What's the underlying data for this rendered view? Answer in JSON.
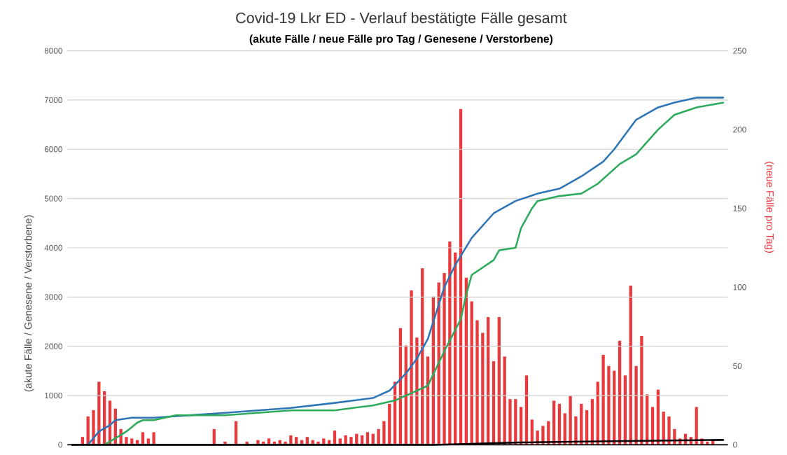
{
  "chart_data": {
    "type": "line",
    "title": "Covid-19 Lkr ED - Verlauf bestätigte Fälle gesamt",
    "subtitle": "(akute Fälle / neue Fälle pro Tag / Genesene / Verstorbene)",
    "ylabel": "(akute Fälle / Genesene / Verstorbene)",
    "y2label": "(neue Fälle pro Tag)",
    "categories": [
      null,
      null,
      null,
      null,
      null,
      null,
      null,
      null,
      null,
      null,
      null,
      null,
      null,
      null,
      null,
      null,
      null,
      null,
      null,
      null,
      null,
      null,
      null,
      null,
      null,
      null,
      null,
      null,
      null,
      null,
      null,
      null,
      null,
      null,
      null,
      null,
      null,
      null,
      null,
      null,
      null,
      null,
      null,
      null,
      null,
      null,
      null,
      null,
      null,
      null,
      null,
      null,
      null,
      null,
      null,
      null,
      null,
      null,
      null,
      null,
      null,
      null,
      null,
      null,
      null,
      null,
      null,
      null,
      null,
      null,
      null,
      null,
      null,
      null,
      null,
      null,
      null,
      null,
      null,
      null,
      null,
      null,
      null,
      null,
      null,
      null,
      null,
      null,
      null,
      null,
      null,
      null,
      null,
      null,
      null,
      null,
      null,
      null,
      null,
      null,
      null,
      null,
      null,
      null,
      null,
      null,
      null,
      null,
      null,
      null,
      null,
      null,
      null,
      null,
      null,
      null,
      null,
      null,
      null,
      null
    ],
    "series": [
      {
        "color": "#2e75b6",
        "values": [
          null,
          null,
          null,
          0,
          null,
          270,
          null,
          400,
          500,
          null,
          null,
          550,
          null,
          null,
          null,
          550,
          null,
          null,
          null,
          null,
          null,
          null,
          null,
          null,
          null,
          null,
          null,
          null,
          650,
          null,
          null,
          null,
          null,
          null,
          null,
          null,
          null,
          null,
          null,
          null,
          750,
          null,
          null,
          null,
          null,
          null,
          null,
          null,
          850,
          null,
          null,
          null,
          null,
          null,
          null,
          950,
          null,
          null,
          1100,
          null,
          null,
          1450,
          null,
          1750,
          null,
          2150,
          null,
          null,
          3200,
          null,
          3650,
          null,
          null,
          4200,
          null,
          null,
          null,
          4700,
          null,
          null,
          null,
          4950,
          null,
          null,
          null,
          5100,
          null,
          null,
          null,
          5200,
          null,
          null,
          null,
          5450,
          null,
          null,
          null,
          5750,
          null,
          6000,
          null,
          6300,
          null,
          6600,
          null,
          null,
          null,
          6850,
          null,
          null,
          6950,
          null,
          null,
          null,
          7050,
          null,
          null,
          null,
          null,
          7050
        ]
      },
      {
        "type": "bar",
        "axis": "y2",
        "color": "#e8393c",
        "values": [
          0,
          0,
          5,
          18,
          22,
          40,
          34,
          28,
          23,
          10,
          5,
          4,
          3,
          8,
          4,
          8,
          null,
          0,
          null,
          0,
          null,
          0,
          null,
          0,
          null,
          0,
          10,
          null,
          2,
          null,
          15,
          null,
          2,
          null,
          3,
          2,
          4,
          2,
          3,
          2,
          6,
          5,
          3,
          5,
          3,
          2,
          4,
          3,
          9,
          4,
          6,
          5,
          7,
          6,
          8,
          7,
          10,
          15,
          26,
          40,
          74,
          63,
          98,
          68,
          112,
          56,
          94,
          103,
          109,
          129,
          122,
          213,
          106,
          91,
          79,
          71,
          81,
          53,
          81,
          56,
          29,
          29,
          24,
          44,
          16,
          9,
          12,
          15,
          28,
          26,
          20,
          31,
          18,
          26,
          22,
          29,
          40,
          57,
          50,
          47,
          66,
          44,
          101,
          50,
          69,
          32,
          24,
          35,
          21,
          18,
          10,
          4,
          7,
          5,
          24,
          4,
          2,
          3,
          null,
          0
        ]
      },
      {
        "color": "#2eaa5c",
        "values": [
          null,
          null,
          null,
          null,
          null,
          null,
          0,
          null,
          null,
          200,
          270,
          null,
          450,
          500,
          null,
          500,
          null,
          null,
          null,
          600,
          null,
          null,
          null,
          null,
          null,
          null,
          null,
          null,
          600,
          null,
          null,
          null,
          null,
          null,
          null,
          null,
          null,
          null,
          null,
          null,
          700,
          null,
          null,
          null,
          null,
          null,
          null,
          null,
          700,
          null,
          null,
          null,
          null,
          null,
          null,
          800,
          null,
          null,
          null,
          900,
          950,
          null,
          null,
          null,
          null,
          1200,
          null,
          null,
          1900,
          null,
          null,
          2550,
          3050,
          3450,
          null,
          null,
          null,
          3750,
          3950,
          null,
          null,
          4000,
          4400,
          null,
          4800,
          4950,
          null,
          null,
          null,
          5050,
          null,
          null,
          null,
          5100,
          null,
          null,
          5300,
          null,
          null,
          null,
          5700,
          null,
          null,
          5900,
          null,
          null,
          null,
          6400,
          null,
          null,
          6700,
          null,
          null,
          null,
          6850,
          null,
          null,
          null,
          null,
          6950
        ]
      },
      {
        "color": "#000000",
        "values": [
          0,
          null,
          null,
          null,
          null,
          null,
          null,
          null,
          null,
          null,
          null,
          null,
          null,
          null,
          null,
          null,
          null,
          null,
          null,
          null,
          null,
          null,
          null,
          null,
          null,
          null,
          null,
          null,
          null,
          null,
          null,
          null,
          null,
          null,
          null,
          null,
          null,
          null,
          null,
          null,
          null,
          null,
          null,
          null,
          null,
          null,
          null,
          null,
          null,
          null,
          null,
          null,
          null,
          null,
          null,
          null,
          null,
          null,
          null,
          null,
          null,
          null,
          null,
          null,
          null,
          null,
          0,
          null,
          null,
          null,
          null,
          null,
          null,
          null,
          null,
          null,
          null,
          null,
          null,
          null,
          null,
          null,
          50,
          null,
          null,
          null,
          null,
          null,
          null,
          null,
          null,
          null,
          null,
          null,
          null,
          null,
          null,
          null,
          null,
          null,
          null,
          null,
          null,
          null,
          null,
          null,
          null,
          null,
          null,
          null,
          null,
          null,
          null,
          null,
          null,
          null,
          null,
          null,
          null,
          100
        ]
      }
    ],
    "ylim": [
      0,
      8000
    ],
    "yticks": [
      0,
      1000,
      2000,
      3000,
      4000,
      5000,
      6000,
      7000,
      8000
    ],
    "y2lim": [
      0,
      250
    ],
    "y2ticks": [
      0,
      50,
      100,
      150,
      200,
      250
    ],
    "grid": "y",
    "tick_labels": "y"
  }
}
